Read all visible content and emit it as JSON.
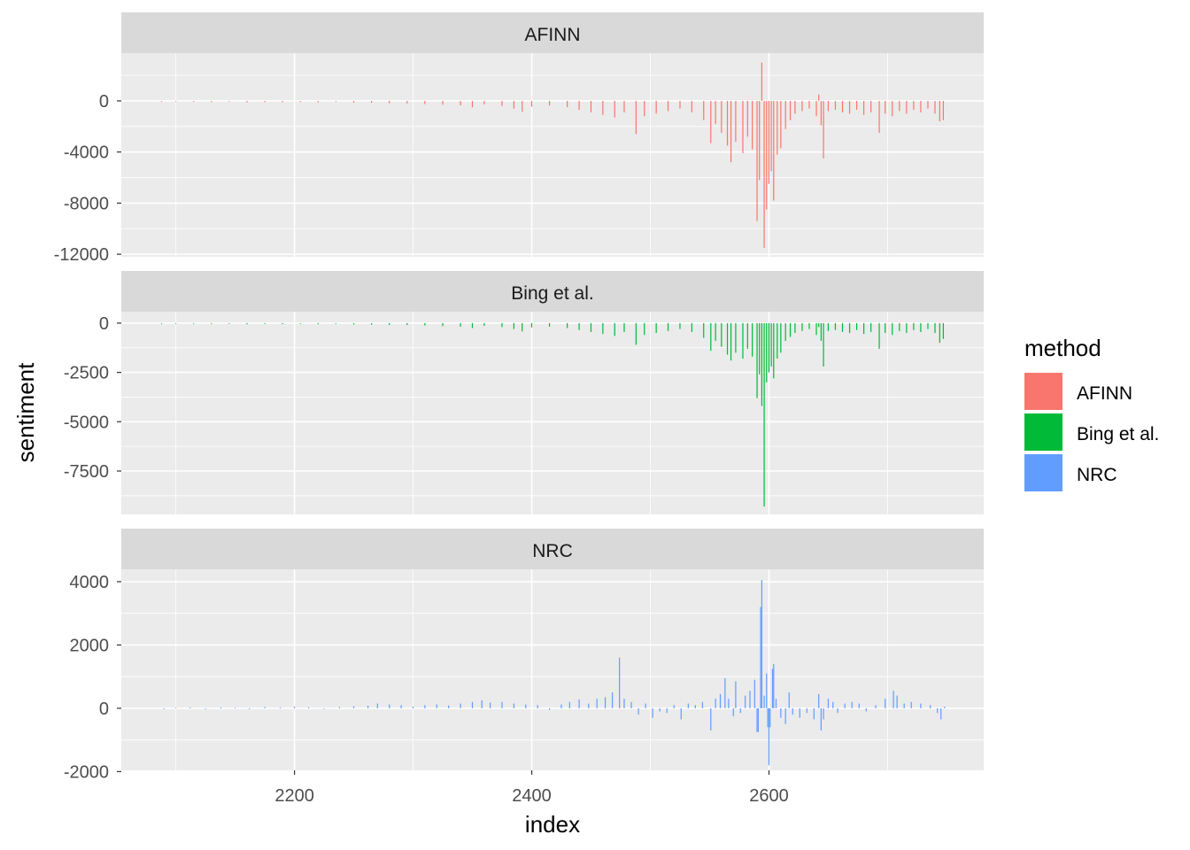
{
  "chart_data": {
    "type": "bar",
    "layout": "facet-wrap, 3 rows, shared x, free y",
    "xlabel": "index",
    "ylabel": "sentiment",
    "xlim": [
      2054,
      2781
    ],
    "x_ticks": [
      2200,
      2400,
      2600
    ],
    "grid": true,
    "legend": {
      "title": "method",
      "placement": "right",
      "entries": [
        {
          "label": "AFINN",
          "color": "#F8766D"
        },
        {
          "label": "Bing et al.",
          "color": "#00BA38"
        },
        {
          "label": "NRC",
          "color": "#619CFF"
        }
      ]
    },
    "facets": [
      {
        "name": "AFINN",
        "color": "#F8766D",
        "ylim": [
          -12200,
          3740
        ],
        "y_ticks": [
          0,
          -4000,
          -8000,
          -12000
        ],
        "y_tick_labels": [
          "0",
          "-4000",
          "-8000",
          "-12000"
        ],
        "points": [
          [
            2088,
            -60
          ],
          [
            2100,
            -50
          ],
          [
            2115,
            -70
          ],
          [
            2130,
            -80
          ],
          [
            2145,
            -60
          ],
          [
            2160,
            -120
          ],
          [
            2175,
            -90
          ],
          [
            2190,
            -100
          ],
          [
            2205,
            -80
          ],
          [
            2220,
            -110
          ],
          [
            2235,
            -60
          ],
          [
            2250,
            -130
          ],
          [
            2265,
            -150
          ],
          [
            2280,
            -180
          ],
          [
            2295,
            -200
          ],
          [
            2310,
            -250
          ],
          [
            2325,
            -300
          ],
          [
            2340,
            -350
          ],
          [
            2350,
            -500
          ],
          [
            2360,
            -280
          ],
          [
            2375,
            -400
          ],
          [
            2385,
            -600
          ],
          [
            2392,
            -850
          ],
          [
            2400,
            -450
          ],
          [
            2415,
            -350
          ],
          [
            2430,
            -500
          ],
          [
            2440,
            -700
          ],
          [
            2450,
            -900
          ],
          [
            2460,
            -1100
          ],
          [
            2470,
            -1300
          ],
          [
            2478,
            -900
          ],
          [
            2488,
            -2600
          ],
          [
            2495,
            -1200
          ],
          [
            2505,
            -1000
          ],
          [
            2515,
            -800
          ],
          [
            2525,
            -600
          ],
          [
            2535,
            -900
          ],
          [
            2545,
            -1500
          ],
          [
            2551,
            -3300
          ],
          [
            2555,
            -1800
          ],
          [
            2560,
            -2500
          ],
          [
            2565,
            -3500
          ],
          [
            2568,
            -4800
          ],
          [
            2572,
            -3200
          ],
          [
            2578,
            -4100
          ],
          [
            2582,
            -2800
          ],
          [
            2586,
            -3800
          ],
          [
            2590,
            -9400
          ],
          [
            2592,
            -6200
          ],
          [
            2594,
            3000
          ],
          [
            2596,
            -11500
          ],
          [
            2598,
            -8500
          ],
          [
            2600,
            -6500
          ],
          [
            2602,
            -5500
          ],
          [
            2604,
            -7800
          ],
          [
            2607,
            -4200
          ],
          [
            2610,
            -3700
          ],
          [
            2614,
            -2200
          ],
          [
            2618,
            -1500
          ],
          [
            2622,
            -1000
          ],
          [
            2628,
            -800
          ],
          [
            2634,
            -600
          ],
          [
            2640,
            -1200
          ],
          [
            2642,
            500
          ],
          [
            2644,
            -1900
          ],
          [
            2646,
            -4500
          ],
          [
            2650,
            -800
          ],
          [
            2656,
            -700
          ],
          [
            2662,
            -900
          ],
          [
            2668,
            -1000
          ],
          [
            2674,
            -700
          ],
          [
            2680,
            -1100
          ],
          [
            2686,
            -900
          ],
          [
            2693,
            -2500
          ],
          [
            2698,
            -1000
          ],
          [
            2704,
            -1200
          ],
          [
            2710,
            -800
          ],
          [
            2716,
            -1000
          ],
          [
            2722,
            -700
          ],
          [
            2728,
            -900
          ],
          [
            2734,
            -600
          ],
          [
            2740,
            -1000
          ],
          [
            2744,
            -1600
          ],
          [
            2747,
            -1500
          ]
        ]
      },
      {
        "name": "Bing et al.",
        "color": "#00BA38",
        "ylim": [
          -9700,
          580
        ],
        "y_ticks": [
          0,
          -2500,
          -5000,
          -7500
        ],
        "y_tick_labels": [
          "0",
          "-2500",
          "-5000",
          "-7500"
        ],
        "points": [
          [
            2088,
            -30
          ],
          [
            2100,
            -25
          ],
          [
            2115,
            -35
          ],
          [
            2130,
            -40
          ],
          [
            2145,
            -30
          ],
          [
            2160,
            -60
          ],
          [
            2175,
            -45
          ],
          [
            2190,
            -50
          ],
          [
            2205,
            -40
          ],
          [
            2220,
            -55
          ],
          [
            2235,
            -30
          ],
          [
            2250,
            -65
          ],
          [
            2265,
            -75
          ],
          [
            2280,
            -90
          ],
          [
            2295,
            -100
          ],
          [
            2310,
            -120
          ],
          [
            2325,
            -150
          ],
          [
            2340,
            -180
          ],
          [
            2350,
            -250
          ],
          [
            2360,
            -140
          ],
          [
            2375,
            -200
          ],
          [
            2385,
            -300
          ],
          [
            2392,
            -420
          ],
          [
            2400,
            -220
          ],
          [
            2415,
            -180
          ],
          [
            2430,
            -250
          ],
          [
            2440,
            -350
          ],
          [
            2450,
            -450
          ],
          [
            2460,
            -550
          ],
          [
            2470,
            -650
          ],
          [
            2478,
            -450
          ],
          [
            2488,
            -1100
          ],
          [
            2495,
            -600
          ],
          [
            2505,
            -500
          ],
          [
            2515,
            -400
          ],
          [
            2525,
            -300
          ],
          [
            2535,
            -450
          ],
          [
            2545,
            -750
          ],
          [
            2551,
            -1400
          ],
          [
            2555,
            -900
          ],
          [
            2560,
            -1200
          ],
          [
            2565,
            -1600
          ],
          [
            2568,
            -1900
          ],
          [
            2572,
            -1500
          ],
          [
            2578,
            -1800
          ],
          [
            2582,
            -1300
          ],
          [
            2586,
            -1700
          ],
          [
            2590,
            -3800
          ],
          [
            2592,
            -2600
          ],
          [
            2594,
            -4200
          ],
          [
            2596,
            -9300
          ],
          [
            2598,
            -3000
          ],
          [
            2600,
            -2500
          ],
          [
            2602,
            -2200
          ],
          [
            2604,
            -2800
          ],
          [
            2607,
            -1800
          ],
          [
            2610,
            -1500
          ],
          [
            2614,
            -900
          ],
          [
            2618,
            -700
          ],
          [
            2622,
            -500
          ],
          [
            2628,
            -400
          ],
          [
            2634,
            -300
          ],
          [
            2640,
            -600
          ],
          [
            2642,
            -200
          ],
          [
            2644,
            -900
          ],
          [
            2646,
            -2200
          ],
          [
            2650,
            -400
          ],
          [
            2656,
            -350
          ],
          [
            2662,
            -450
          ],
          [
            2668,
            -500
          ],
          [
            2674,
            -350
          ],
          [
            2680,
            -550
          ],
          [
            2686,
            -450
          ],
          [
            2693,
            -1300
          ],
          [
            2698,
            -500
          ],
          [
            2704,
            -600
          ],
          [
            2710,
            -400
          ],
          [
            2716,
            -500
          ],
          [
            2722,
            -350
          ],
          [
            2728,
            -450
          ],
          [
            2734,
            -300
          ],
          [
            2740,
            -500
          ],
          [
            2744,
            -1000
          ],
          [
            2747,
            -800
          ]
        ]
      },
      {
        "name": "NRC",
        "color": "#619CFF",
        "ylim": [
          -1960,
          4390
        ],
        "y_ticks": [
          4000,
          2000,
          0,
          -2000
        ],
        "y_tick_labels": [
          "4000",
          "2000",
          "0",
          "-2000"
        ],
        "points": [
          [
            2090,
            -30
          ],
          [
            2100,
            20
          ],
          [
            2112,
            30
          ],
          [
            2125,
            -20
          ],
          [
            2138,
            30
          ],
          [
            2150,
            20
          ],
          [
            2162,
            -30
          ],
          [
            2175,
            40
          ],
          [
            2188,
            30
          ],
          [
            2200,
            50
          ],
          [
            2212,
            30
          ],
          [
            2225,
            -20
          ],
          [
            2238,
            40
          ],
          [
            2250,
            60
          ],
          [
            2262,
            80
          ],
          [
            2270,
            150
          ],
          [
            2280,
            120
          ],
          [
            2290,
            100
          ],
          [
            2300,
            50
          ],
          [
            2310,
            100
          ],
          [
            2320,
            120
          ],
          [
            2330,
            90
          ],
          [
            2340,
            150
          ],
          [
            2350,
            200
          ],
          [
            2358,
            250
          ],
          [
            2365,
            180
          ],
          [
            2375,
            200
          ],
          [
            2385,
            150
          ],
          [
            2395,
            120
          ],
          [
            2405,
            100
          ],
          [
            2415,
            -50
          ],
          [
            2425,
            120
          ],
          [
            2432,
            200
          ],
          [
            2440,
            280
          ],
          [
            2448,
            150
          ],
          [
            2455,
            300
          ],
          [
            2462,
            350
          ],
          [
            2468,
            500
          ],
          [
            2474,
            1600
          ],
          [
            2478,
            300
          ],
          [
            2484,
            200
          ],
          [
            2490,
            -200
          ],
          [
            2496,
            150
          ],
          [
            2502,
            -300
          ],
          [
            2508,
            -100
          ],
          [
            2514,
            -150
          ],
          [
            2520,
            100
          ],
          [
            2526,
            -350
          ],
          [
            2532,
            150
          ],
          [
            2538,
            100
          ],
          [
            2544,
            200
          ],
          [
            2551,
            -700
          ],
          [
            2555,
            300
          ],
          [
            2559,
            450
          ],
          [
            2563,
            950
          ],
          [
            2566,
            300
          ],
          [
            2570,
            -250
          ],
          [
            2572,
            850
          ],
          [
            2576,
            -150
          ],
          [
            2580,
            400
          ],
          [
            2584,
            550
          ],
          [
            2588,
            900
          ],
          [
            2590,
            -750
          ],
          [
            2591,
            -750
          ],
          [
            2593,
            3200
          ],
          [
            2594,
            4050
          ],
          [
            2596,
            400
          ],
          [
            2598,
            1100
          ],
          [
            2599,
            -600
          ],
          [
            2600,
            -1800
          ],
          [
            2601,
            -600
          ],
          [
            2603,
            1250
          ],
          [
            2604,
            1400
          ],
          [
            2606,
            300
          ],
          [
            2610,
            -300
          ],
          [
            2614,
            -500
          ],
          [
            2617,
            500
          ],
          [
            2620,
            -200
          ],
          [
            2626,
            -300
          ],
          [
            2632,
            -150
          ],
          [
            2638,
            -350
          ],
          [
            2642,
            450
          ],
          [
            2644,
            -700
          ],
          [
            2646,
            -350
          ],
          [
            2650,
            300
          ],
          [
            2654,
            200
          ],
          [
            2658,
            -150
          ],
          [
            2664,
            150
          ],
          [
            2670,
            200
          ],
          [
            2676,
            150
          ],
          [
            2682,
            -100
          ],
          [
            2690,
            100
          ],
          [
            2698,
            300
          ],
          [
            2705,
            550
          ],
          [
            2708,
            400
          ],
          [
            2714,
            150
          ],
          [
            2720,
            200
          ],
          [
            2728,
            150
          ],
          [
            2736,
            100
          ],
          [
            2742,
            -150
          ],
          [
            2745,
            -350
          ],
          [
            2748,
            50
          ]
        ]
      }
    ]
  }
}
